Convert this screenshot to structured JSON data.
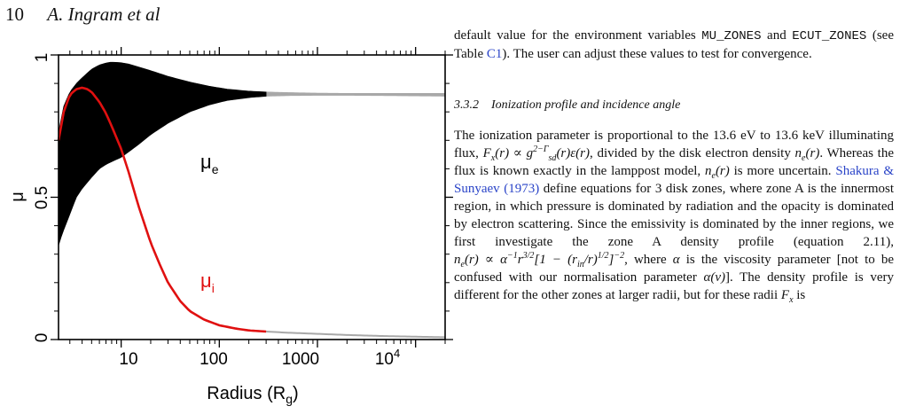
{
  "header": {
    "page_number": "10",
    "authors": "A. Ingram et al"
  },
  "figure": {
    "y_ticks": [
      "0",
      "0.5",
      "1"
    ],
    "x_ticks": [
      "10",
      "100",
      "1000",
      "10"
    ],
    "x_tick_last_superscript": "4",
    "y_label": "μ",
    "x_label_main": "Radius (R",
    "x_label_sub": "g",
    "x_label_close": ")",
    "label_mu_e_main": "μ",
    "label_mu_e_sub": "e",
    "label_mu_i_main": "μ",
    "label_mu_i_sub": "i",
    "colors": {
      "mu_e_band": "#000000",
      "mu_e_band_extrapolated": "#a8a8a8",
      "mu_i_curve": "#e01010",
      "mu_i_extrapolated": "#a8a8a8"
    }
  },
  "chart_data": {
    "type": "line",
    "xlabel": "Radius (Rg)",
    "ylabel": "μ",
    "x_scale": "log",
    "xlim": [
      2.3,
      20000
    ],
    "ylim": [
      0,
      1
    ],
    "x_ticks": [
      10,
      100,
      1000,
      10000
    ],
    "y_ticks": [
      0,
      0.5,
      1
    ],
    "grid": false,
    "solid_to_radius": 300,
    "series": [
      {
        "name": "μe (upper edge)",
        "x": [
          2.3,
          2.6,
          3,
          3.5,
          4,
          5,
          6,
          7,
          8,
          10,
          12,
          15,
          20,
          30,
          50,
          80,
          120,
          200,
          300,
          500,
          1000,
          2000,
          5000,
          10000,
          20000
        ],
        "y": [
          0.73,
          0.82,
          0.87,
          0.9,
          0.92,
          0.95,
          0.965,
          0.972,
          0.975,
          0.973,
          0.968,
          0.958,
          0.945,
          0.925,
          0.905,
          0.89,
          0.88,
          0.873,
          0.87,
          0.868,
          0.866,
          0.865,
          0.865,
          0.865,
          0.865
        ]
      },
      {
        "name": "μe (lower edge)",
        "x": [
          2.3,
          2.5,
          3,
          3.5,
          4,
          5,
          6,
          7,
          8,
          10,
          12,
          15,
          20,
          30,
          50,
          80,
          120,
          200,
          300,
          500,
          1000,
          2000,
          5000,
          10000,
          20000
        ],
        "y": [
          0.33,
          0.37,
          0.44,
          0.5,
          0.53,
          0.57,
          0.6,
          0.615,
          0.625,
          0.64,
          0.66,
          0.685,
          0.72,
          0.76,
          0.8,
          0.825,
          0.84,
          0.85,
          0.855,
          0.857,
          0.858,
          0.858,
          0.857,
          0.856,
          0.855
        ]
      },
      {
        "name": "μi",
        "x": [
          2.3,
          2.6,
          3,
          3.5,
          4,
          4.5,
          5,
          6,
          7,
          8,
          10,
          12,
          15,
          20,
          25,
          30,
          40,
          50,
          70,
          100,
          150,
          200,
          300,
          500,
          1000,
          2000,
          5000,
          10000,
          20000
        ],
        "y": [
          0.7,
          0.8,
          0.86,
          0.88,
          0.885,
          0.88,
          0.87,
          0.835,
          0.795,
          0.75,
          0.67,
          0.585,
          0.47,
          0.34,
          0.26,
          0.2,
          0.135,
          0.1,
          0.07,
          0.05,
          0.038,
          0.032,
          0.028,
          0.024,
          0.02,
          0.016,
          0.012,
          0.01,
          0.008
        ]
      }
    ]
  },
  "text": {
    "para1": {
      "t1": "default value for the environment variables ",
      "code1": "MU_ZONES",
      "t2": " and ",
      "code2": "ECUT_ZONES",
      "t3": " (see Table ",
      "ref": "C1",
      "t4": "). The user can adjust these values to test for convergence."
    },
    "subsection": {
      "number": "3.3.2",
      "title": "Ionization profile and incidence angle"
    },
    "para2": {
      "t1": "The ionization parameter is proportional to the 13.6 eV to 13.6 keV illuminating flux, ",
      "m1": "F",
      "m1_sub": "x",
      "m1_rest": "(r) ∝ g",
      "m1_sup": "2−Γ",
      "m1_sub2": "sd",
      "m1_tail": "(r)ε(r)",
      "t2": ", divided by the disk electron density ",
      "m2": "n",
      "m2_sub": "e",
      "m2_tail": "(r)",
      "t3": ". Whereas the flux is known exactly in the lamppost model, ",
      "m3": "n",
      "m3_sub": "e",
      "m3_tail": "(r)",
      "t4": " is more uncertain. ",
      "ref": "Shakura & Sunyaev",
      "ref_year": "1973",
      "t5": " define equations for 3 disk zones, where zone A is the innermost region, in which pressure is dominated by radiation and the opacity is dominated by electron scattering. Since the emissivity is dominated by the inner regions, we first investigate the zone A density profile (equation 2.11), ",
      "m4_a": "n",
      "m4_sub": "e",
      "m4_b": "(r) ∝ α",
      "m4_sup1": "−1",
      "m4_c": "r",
      "m4_sup2": "3/2",
      "m4_d": "[1 − (r",
      "m4_sub2": "in",
      "m4_e": "/r)",
      "m4_sup3": "1/2",
      "m4_f": "]",
      "m4_sup4": "−2",
      "t6": ", where ",
      "m5": "α",
      "t7": " is the viscosity parameter [not to be confused with our normalisation parameter ",
      "m6": "α(ν)",
      "t8": "]. The density profile is very different for the other zones at larger radii, but for these radii ",
      "m7": "F",
      "m7_sub": "x",
      "t9": " is"
    }
  }
}
